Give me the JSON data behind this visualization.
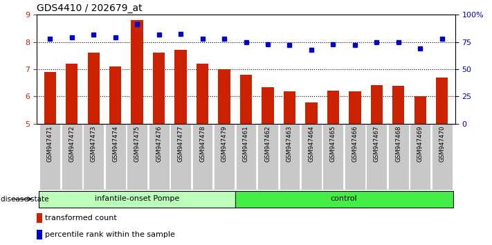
{
  "title": "GDS4410 / 202679_at",
  "samples": [
    "GSM947471",
    "GSM947472",
    "GSM947473",
    "GSM947474",
    "GSM947475",
    "GSM947476",
    "GSM947477",
    "GSM947478",
    "GSM947479",
    "GSM947461",
    "GSM947462",
    "GSM947463",
    "GSM947464",
    "GSM947465",
    "GSM947466",
    "GSM947467",
    "GSM947468",
    "GSM947469",
    "GSM947470"
  ],
  "bar_values": [
    6.9,
    7.2,
    7.6,
    7.1,
    8.8,
    7.6,
    7.7,
    7.2,
    7.0,
    6.8,
    6.35,
    6.2,
    5.78,
    6.22,
    6.18,
    6.42,
    6.4,
    6.0,
    6.7
  ],
  "dot_values": [
    8.12,
    8.18,
    8.28,
    8.18,
    8.65,
    8.28,
    8.3,
    8.12,
    8.12,
    8.0,
    7.92,
    7.88,
    7.72,
    7.92,
    7.88,
    8.0,
    7.98,
    7.75,
    8.12
  ],
  "bar_color": "#cc2200",
  "dot_color": "#0000cc",
  "ylim_left": [
    5,
    9
  ],
  "ylim_right": [
    0,
    100
  ],
  "yticks_left": [
    5,
    6,
    7,
    8,
    9
  ],
  "yticks_right": [
    0,
    25,
    50,
    75,
    100
  ],
  "ytick_labels_right": [
    "0",
    "25",
    "50",
    "75",
    "100%"
  ],
  "group1_label": "infantile-onset Pompe",
  "group2_label": "control",
  "group1_count": 9,
  "group2_count": 10,
  "disease_state_label": "disease state",
  "legend_bar_label": "transformed count",
  "legend_dot_label": "percentile rank within the sample",
  "group1_color": "#bbffbb",
  "group2_color": "#44ee44",
  "tick_bg_color": "#c8c8c8",
  "fig_width": 7.11,
  "fig_height": 3.54
}
